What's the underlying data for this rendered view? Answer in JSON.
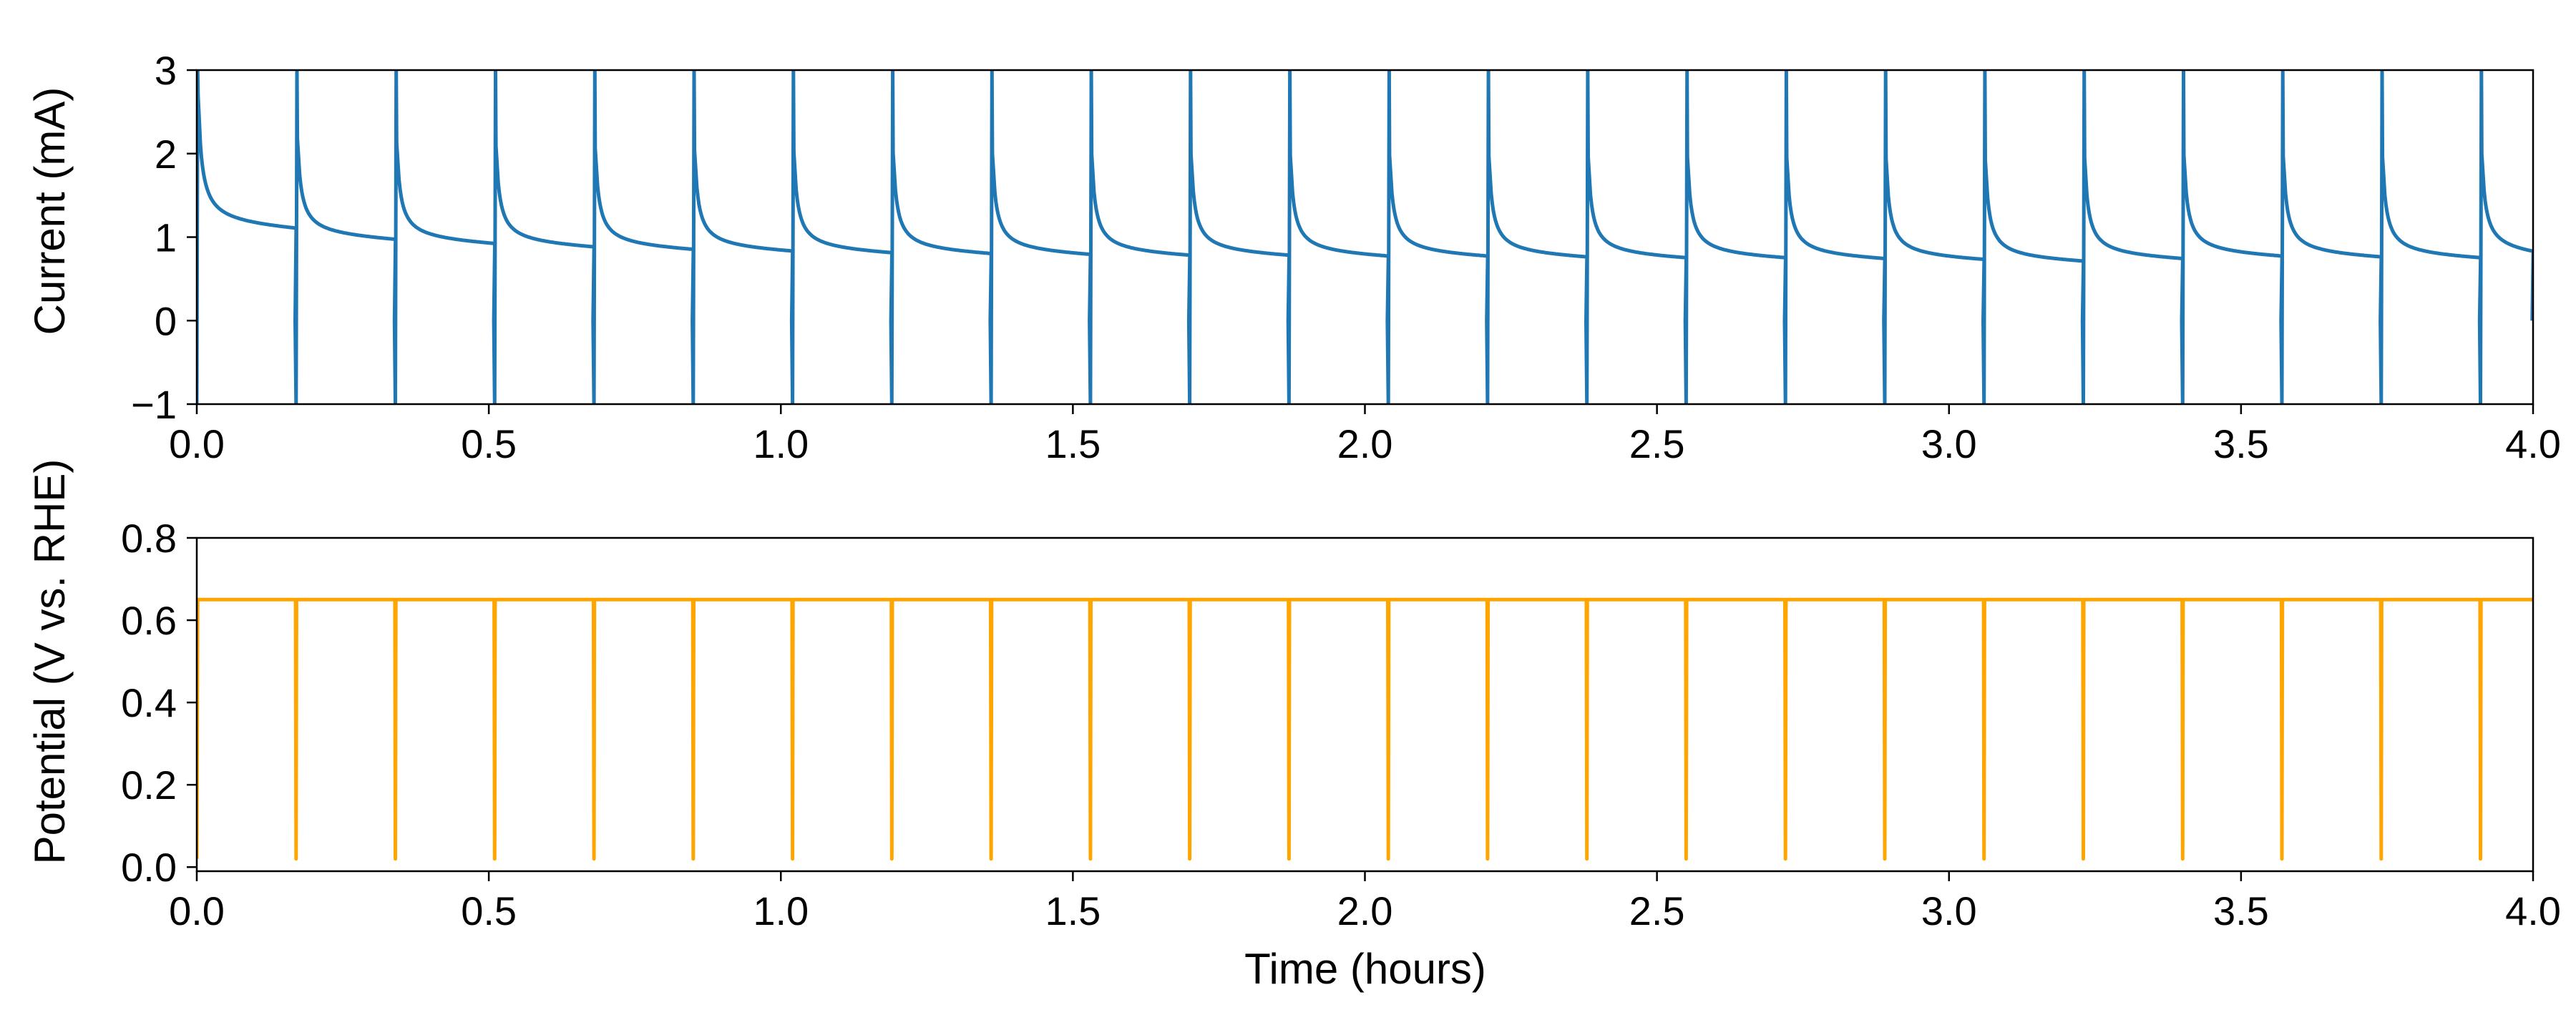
{
  "chart_data": [
    {
      "type": "line",
      "title": "",
      "xlabel": "",
      "ylabel": "Current (mA)",
      "xlim": [
        0,
        4
      ],
      "ylim": [
        -1,
        3
      ],
      "xticks": [
        0.0,
        0.5,
        1.0,
        1.5,
        2.0,
        2.5,
        3.0,
        3.5,
        4.0
      ],
      "xtick_labels": [
        "0.0",
        "0.5",
        "1.0",
        "1.5",
        "2.0",
        "2.5",
        "3.0",
        "3.5",
        "4.0"
      ],
      "yticks": [
        -1,
        0,
        1,
        2,
        3
      ],
      "ytick_labels": [
        "−1",
        "0",
        "1",
        "2",
        "3"
      ],
      "grid": false,
      "color": "#1f77b4",
      "pattern": {
        "cycle_starts_hours": [
          0.0,
          0.17,
          0.34,
          0.51,
          0.68,
          0.85,
          1.02,
          1.19,
          1.36,
          1.53,
          1.7,
          1.87,
          2.04,
          2.21,
          2.38,
          2.55,
          2.72,
          2.89,
          3.06,
          3.23,
          3.4,
          3.57,
          3.74,
          3.91
        ],
        "spike_max_mA": 3,
        "spike_min_mA": -1,
        "cycle_end_current_mA": [
          1.05,
          0.93,
          0.88,
          0.84,
          0.81,
          0.79,
          0.77,
          0.76,
          0.75,
          0.74,
          0.74,
          0.73,
          0.73,
          0.72,
          0.71,
          0.71,
          0.7,
          0.69,
          0.67,
          0.7,
          0.73,
          0.72,
          0.71,
          0.75
        ]
      }
    },
    {
      "type": "line",
      "title": "",
      "xlabel": "Time (hours)",
      "ylabel": "Potential (V vs. RHE)",
      "xlim": [
        0,
        4
      ],
      "ylim": [
        -0.01,
        0.8
      ],
      "xticks": [
        0.0,
        0.5,
        1.0,
        1.5,
        2.0,
        2.5,
        3.0,
        3.5,
        4.0
      ],
      "xtick_labels": [
        "0.0",
        "0.5",
        "1.0",
        "1.5",
        "2.0",
        "2.5",
        "3.0",
        "3.5",
        "4.0"
      ],
      "yticks": [
        0.0,
        0.2,
        0.4,
        0.6,
        0.8
      ],
      "ytick_labels": [
        "0.0",
        "0.2",
        "0.4",
        "0.6",
        "0.8"
      ],
      "grid": false,
      "color": "#ffa500",
      "pattern": {
        "hold_potential_V": 0.65,
        "dip_potential_V": 0.02,
        "dip_times_hours": [
          0.0,
          0.17,
          0.34,
          0.51,
          0.68,
          0.85,
          1.02,
          1.19,
          1.36,
          1.53,
          1.7,
          1.87,
          2.04,
          2.21,
          2.38,
          2.55,
          2.72,
          2.89,
          3.06,
          3.23,
          3.4,
          3.57,
          3.74,
          3.91
        ]
      }
    }
  ]
}
